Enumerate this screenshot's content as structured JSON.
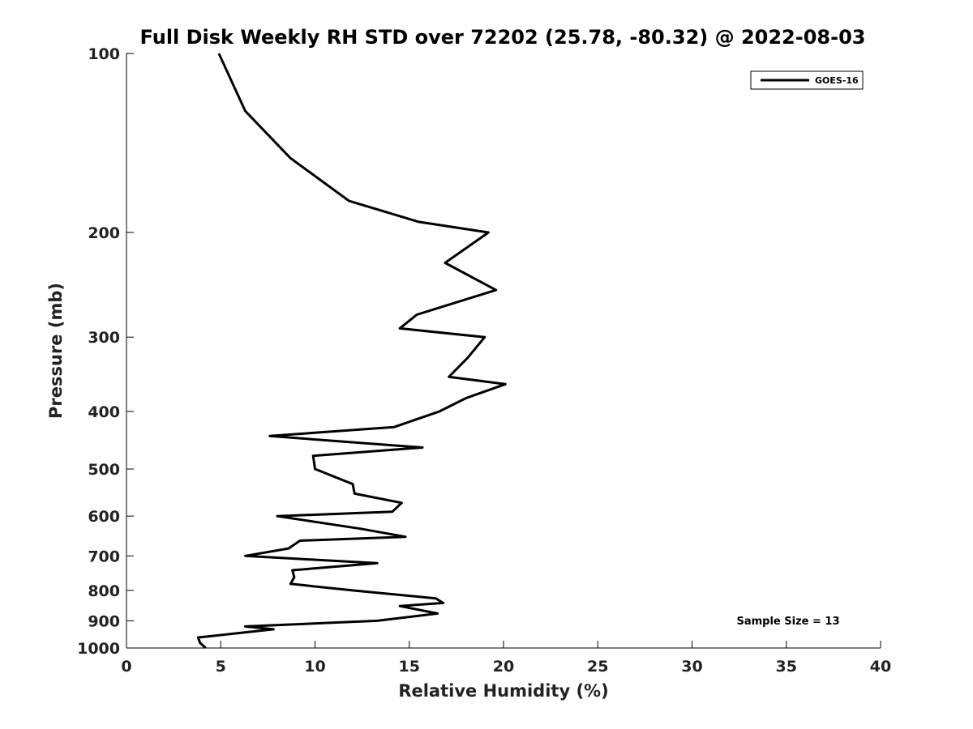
{
  "chart_data": {
    "type": "line",
    "title": "Full Disk Weekly RH STD over 72202 (25.78, -80.32) @ 2022-08-03",
    "xlabel": "Relative Humidity (%)",
    "ylabel": "Pressure (mb)",
    "xlim": [
      0,
      40
    ],
    "ylim": [
      100,
      1000
    ],
    "y_scale": "log",
    "y_reversed": true,
    "x_ticks": [
      0,
      5,
      10,
      15,
      20,
      25,
      30,
      35,
      40
    ],
    "y_ticks": [
      100,
      200,
      300,
      400,
      500,
      600,
      700,
      800,
      900,
      1000
    ],
    "grid": false,
    "legend_placement": "top-right",
    "annotation": "Sample Size = 13",
    "series": [
      {
        "name": "GOES-16",
        "color": "#000000",
        "points": [
          [
            4.9,
            100
          ],
          [
            6.3,
            125
          ],
          [
            8.7,
            150
          ],
          [
            11.8,
            177
          ],
          [
            15.5,
            192
          ],
          [
            19.2,
            200
          ],
          [
            16.9,
            225
          ],
          [
            19.6,
            250
          ],
          [
            15.4,
            275
          ],
          [
            14.5,
            290
          ],
          [
            19.0,
            300
          ],
          [
            18.1,
            325
          ],
          [
            17.1,
            350
          ],
          [
            20.1,
            360
          ],
          [
            18.0,
            380
          ],
          [
            16.6,
            400
          ],
          [
            14.2,
            425
          ],
          [
            7.6,
            440
          ],
          [
            15.7,
            460
          ],
          [
            9.9,
            475
          ],
          [
            10.0,
            500
          ],
          [
            12.0,
            530
          ],
          [
            12.1,
            550
          ],
          [
            14.6,
            570
          ],
          [
            14.1,
            590
          ],
          [
            8.0,
            600
          ],
          [
            12.4,
            630
          ],
          [
            14.8,
            650
          ],
          [
            9.2,
            660
          ],
          [
            8.6,
            680
          ],
          [
            6.3,
            700
          ],
          [
            13.3,
            720
          ],
          [
            8.8,
            740
          ],
          [
            8.9,
            760
          ],
          [
            8.7,
            780
          ],
          [
            12.0,
            800
          ],
          [
            16.4,
            825
          ],
          [
            16.8,
            840
          ],
          [
            14.5,
            850
          ],
          [
            16.5,
            875
          ],
          [
            13.3,
            900
          ],
          [
            6.3,
            920
          ],
          [
            7.8,
            930
          ],
          [
            3.8,
            960
          ],
          [
            3.9,
            980
          ],
          [
            4.2,
            1000
          ]
        ]
      }
    ]
  }
}
